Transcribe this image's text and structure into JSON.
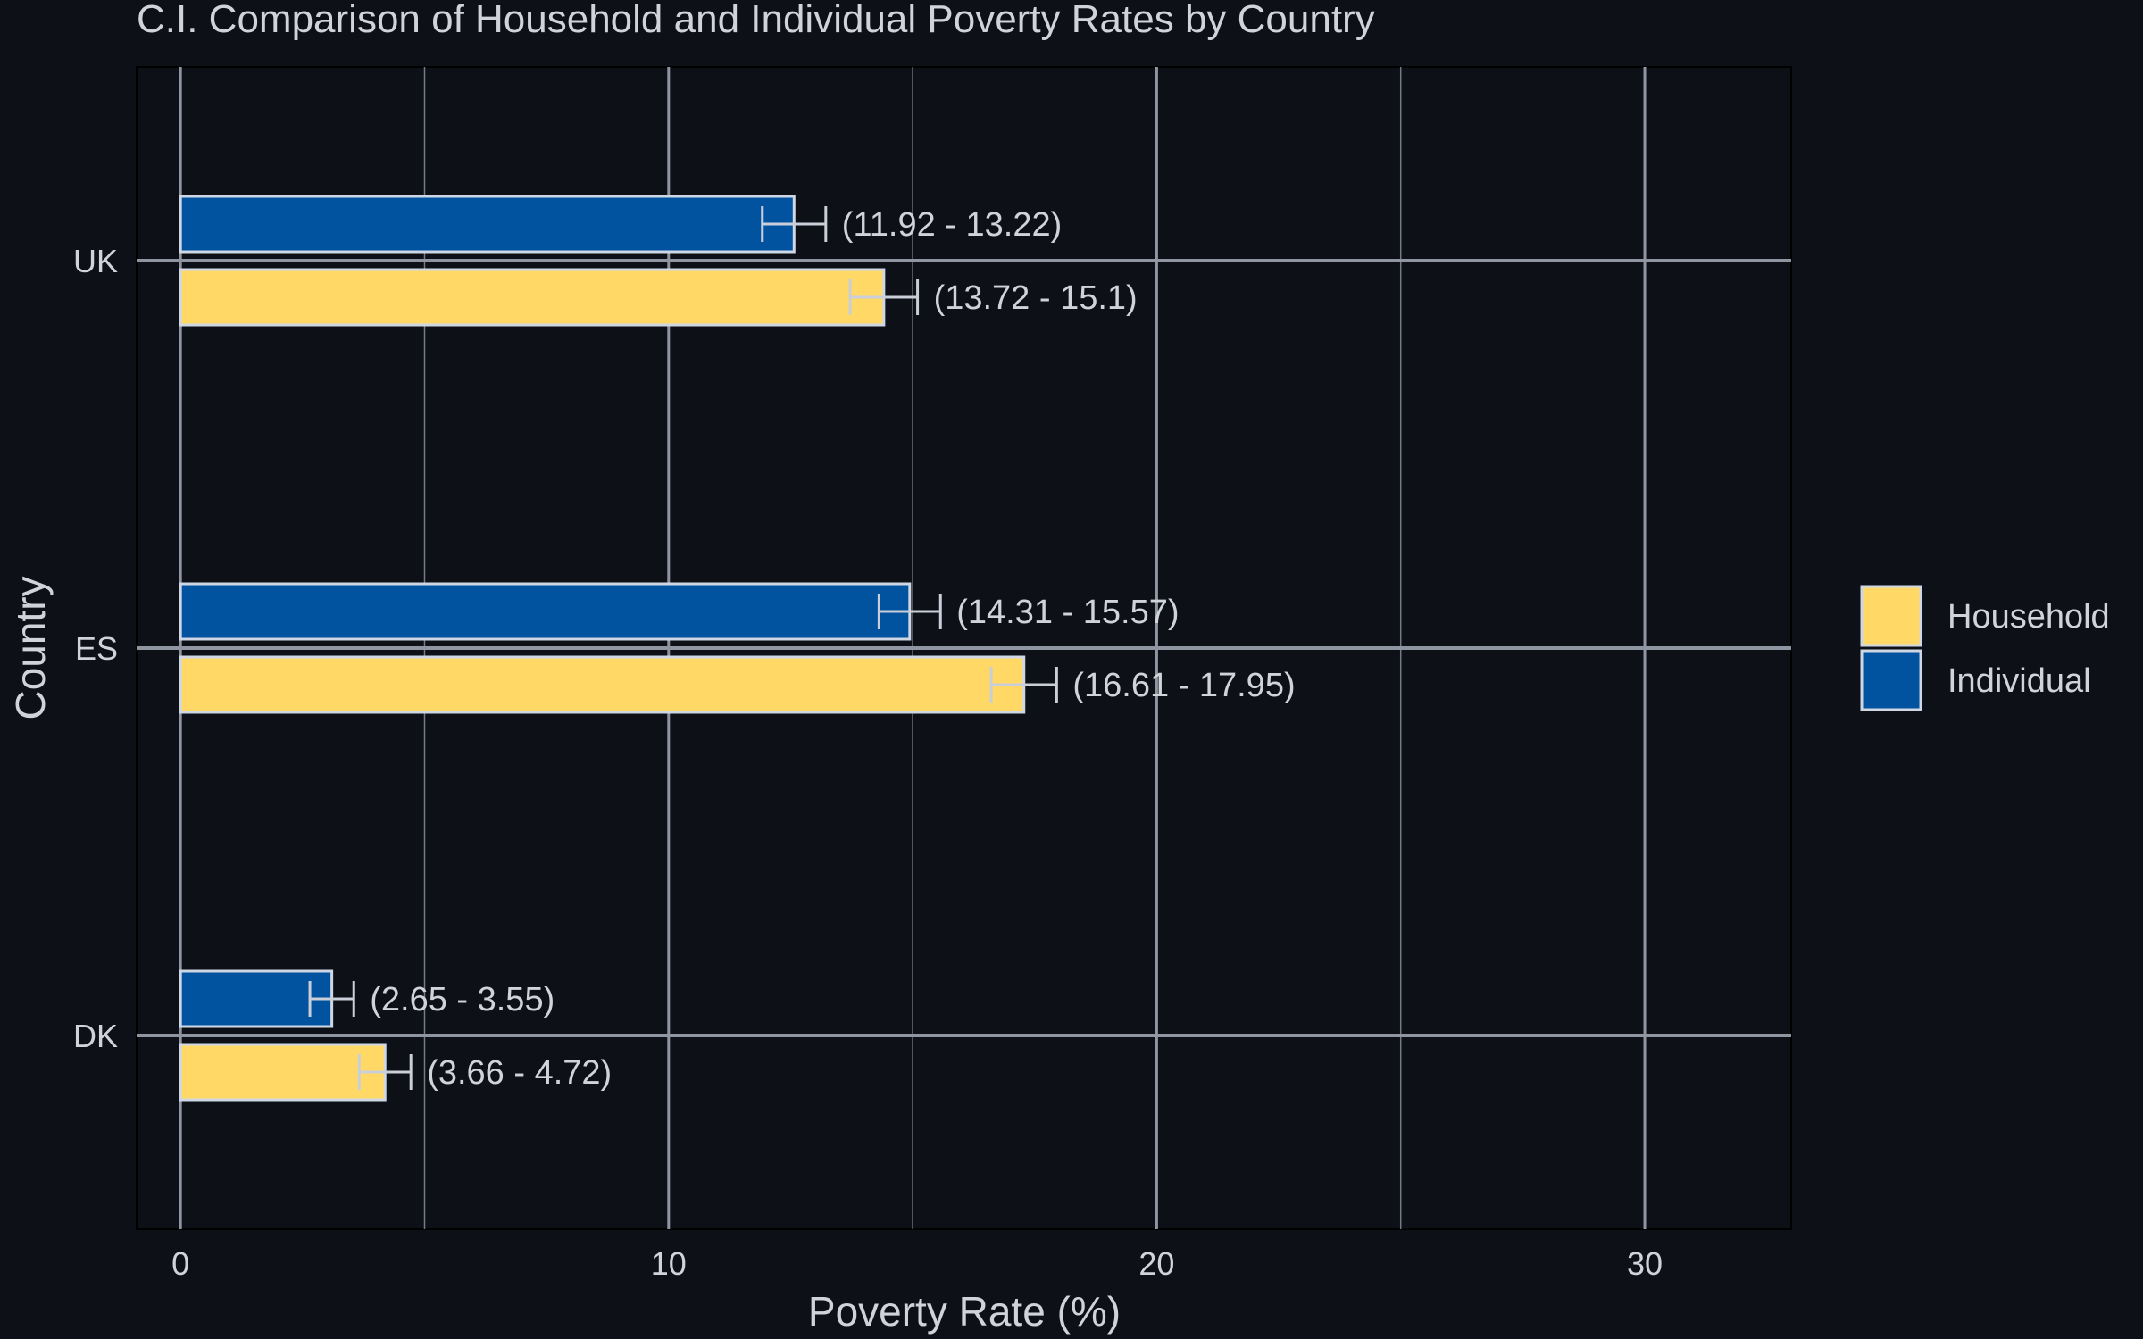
{
  "chart_data": {
    "type": "bar",
    "orientation": "horizontal",
    "title": "C.I. Comparison of Household and Individual Poverty Rates by Country",
    "xlabel": "Poverty Rate (%)",
    "ylabel": "Country",
    "xlim": [
      -0.9,
      33
    ],
    "x_ticks": [
      "0",
      "10",
      "20",
      "30"
    ],
    "categories": [
      "UK",
      "ES",
      "DK"
    ],
    "series": [
      {
        "name": "Individual",
        "color": "#0153a0",
        "values": [
          12.57,
          14.94,
          3.1
        ],
        "ci_low": [
          11.92,
          14.31,
          2.65
        ],
        "ci_high": [
          13.22,
          15.57,
          3.55
        ],
        "labels": [
          "(11.92 - 13.22)",
          "(14.31 - 15.57)",
          "(2.65 - 3.55)"
        ]
      },
      {
        "name": "Household",
        "color": "#ffd866",
        "values": [
          14.41,
          17.28,
          4.19
        ],
        "ci_low": [
          13.72,
          16.61,
          3.66
        ],
        "ci_high": [
          15.1,
          17.95,
          4.72
        ],
        "labels": [
          "(13.72 - 15.1)",
          "(16.61 - 17.95)",
          "(3.66 - 4.72)"
        ]
      }
    ],
    "legend": {
      "placement": "right",
      "entries": [
        "Household",
        "Individual"
      ]
    },
    "grid": true,
    "theme": {
      "background": "#0d1017",
      "panel_border": "#000000",
      "grid_major": "#8f96a1",
      "grid_minor": "#8f96a1",
      "text": "#d0d3da",
      "bar_border": "#d0d7e4",
      "errorbar": "#c9ced8"
    }
  }
}
